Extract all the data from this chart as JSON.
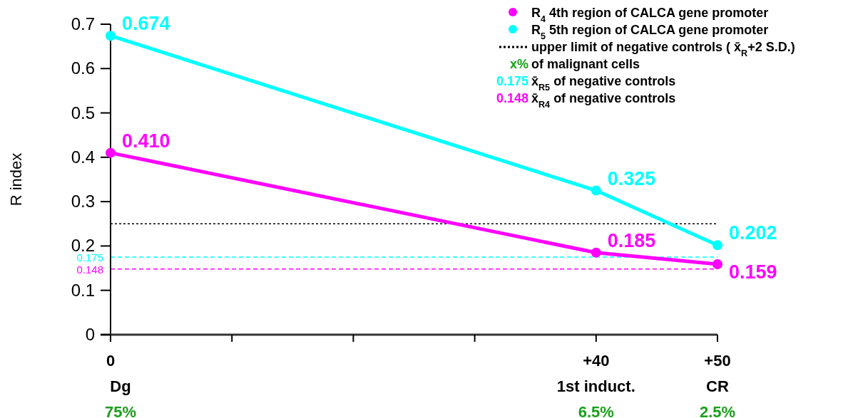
{
  "chart_data": {
    "type": "line",
    "ylabel": "R index",
    "xlim": [
      0,
      50
    ],
    "ylim": [
      0,
      0.7
    ],
    "xticks": [
      {
        "value": 0,
        "label": "0"
      },
      {
        "value": 10,
        "label": null
      },
      {
        "value": 20,
        "label": null
      },
      {
        "value": 30,
        "label": null
      },
      {
        "value": 40,
        "label": "+40"
      },
      {
        "value": 50,
        "label": "+50"
      }
    ],
    "yticks": [
      0,
      0.1,
      0.2,
      0.3,
      0.4,
      0.5,
      0.6,
      0.7
    ],
    "x": [
      0,
      40,
      50
    ],
    "series": [
      {
        "name": "R$_{4}$  4th region of CALCA gene promoter",
        "color": "#ff00ff",
        "values": [
          0.41,
          0.185,
          0.159
        ],
        "value_labels": [
          "0.410",
          "0.185",
          "0.159"
        ]
      },
      {
        "name": "R$_{5}$  5th region of CALCA gene promoter",
        "color": "#00ffff",
        "values": [
          0.674,
          0.325,
          0.202
        ],
        "value_labels": [
          "0.674",
          "0.325",
          "0.202"
        ]
      }
    ],
    "ref_lines": [
      {
        "axis": "y",
        "value": 0.25,
        "label": "upper limit of negative controls ( x̄$_{R}$+2 S.D.)",
        "color": "#000000",
        "line_style": "dotted"
      },
      {
        "axis": "y",
        "value": 0.175,
        "label": "0.175",
        "color": "#00ffff",
        "line_style": "dashed"
      },
      {
        "axis": "y",
        "value": 0.148,
        "label": "0.148",
        "color": "#ff00ff",
        "line_style": "dashed"
      }
    ],
    "annotations": [
      "x% of malignant cells",
      "0.175 x̄$_{R5}$ of negative controls",
      "0.148 x̄$_{R4}$ of negative controls",
      "Dg",
      "1st induct.",
      "CR",
      "75%",
      "6.5%",
      "2.5%"
    ],
    "marker": "circle",
    "line_style": "solid",
    "legend": "top right",
    "grid": false
  }
}
